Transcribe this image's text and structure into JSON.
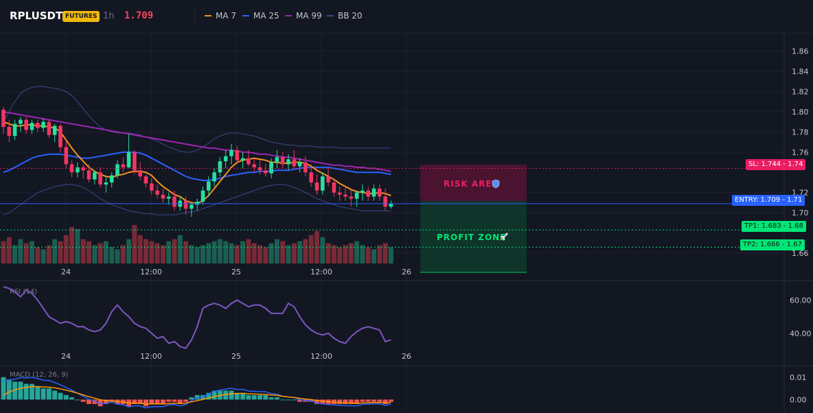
{
  "header": {
    "symbol": "RPLUSDT",
    "badge": "FUTURES",
    "timeframe": "1h",
    "price": "1.709",
    "indicators": [
      {
        "label": "MA 7",
        "color": "#f7931a"
      },
      {
        "label": "MA 25",
        "color": "#2962ff"
      },
      {
        "label": "MA 99",
        "color": "#9c27b0"
      },
      {
        "label": "BB 20",
        "color": "#3b4a8a"
      }
    ]
  },
  "price_axis": {
    "ticks": [
      "1.86",
      "1.84",
      "1.82",
      "1.80",
      "1.78",
      "1.76",
      "1.72",
      "1.70",
      "1.66"
    ],
    "tick_values": [
      1.86,
      1.84,
      1.82,
      1.8,
      1.78,
      1.76,
      1.72,
      1.7,
      1.66
    ],
    "range": [
      1.658,
      1.878
    ]
  },
  "time_axis": {
    "labels": [
      "24",
      "12:00",
      "25",
      "12:00",
      "26"
    ]
  },
  "zones": {
    "risk_label": "RISK AREA",
    "risk_icon": "shield-icon",
    "profit_label": "PROFIT ZONE",
    "profit_icon": "rocket-icon"
  },
  "levels": {
    "sl": {
      "text": "SL: 1.744",
      "axis": "1.74",
      "value": 1.744,
      "color": "#e91e63"
    },
    "entry": {
      "text": "ENTRY: 1.709",
      "axis": "1.71",
      "value": 1.709,
      "color": "#2962ff"
    },
    "tp1": {
      "text": "TP1: 1.683",
      "axis": "1.68",
      "value": 1.683,
      "color": "#00e676"
    },
    "tp2": {
      "text": "TP2: 1.666",
      "axis": "1.67",
      "value": 1.666,
      "color": "#00e676"
    }
  },
  "rsi": {
    "label": "RSI (14)",
    "ticks": [
      "60.00",
      "40.00"
    ],
    "range": [
      30,
      68
    ],
    "values": [
      68,
      67,
      65,
      62,
      66,
      64,
      60,
      55,
      50,
      48,
      46,
      47,
      46,
      44,
      44,
      42,
      41,
      42,
      46,
      53,
      57,
      53,
      50,
      46,
      44,
      43,
      40,
      37,
      38,
      34,
      35,
      32,
      31,
      36,
      44,
      55,
      57,
      58,
      57,
      55,
      58,
      60,
      58,
      56,
      57,
      57,
      55,
      52,
      52,
      52,
      58,
      56,
      50,
      45,
      42,
      40,
      39,
      40,
      37,
      35,
      34,
      38,
      41,
      43,
      44,
      43,
      42,
      35,
      36
    ]
  },
  "macd": {
    "label": "MACD (12, 26, 9)",
    "ticks": [
      "0.01",
      "0.00"
    ],
    "range": [
      -0.006,
      0.013
    ],
    "histogram": [
      0.01,
      0.009,
      0.008,
      0.008,
      0.007,
      0.007,
      0.006,
      0.005,
      0.005,
      0.004,
      0.003,
      0.002,
      0.001,
      0.0,
      -0.001,
      -0.002,
      -0.002,
      -0.003,
      -0.002,
      -0.001,
      -0.002,
      -0.002,
      -0.003,
      -0.002,
      -0.002,
      -0.003,
      -0.002,
      -0.002,
      -0.002,
      -0.001,
      -0.001,
      -0.002,
      -0.001,
      0.001,
      0.002,
      0.002,
      0.003,
      0.004,
      0.004,
      0.004,
      0.004,
      0.003,
      0.003,
      0.002,
      0.002,
      0.002,
      0.002,
      0.001,
      0.001,
      0.0,
      0.0,
      0.0,
      -0.001,
      -0.001,
      -0.001,
      -0.002,
      -0.002,
      -0.002,
      -0.002,
      -0.002,
      -0.002,
      -0.002,
      -0.002,
      -0.001,
      -0.001,
      -0.001,
      -0.001,
      -0.002,
      -0.001
    ]
  },
  "chart_data": {
    "type": "candlestick",
    "candles": [
      [
        1.802,
        1.805,
        1.778,
        1.785
      ],
      [
        1.785,
        1.792,
        1.77,
        1.776
      ],
      [
        1.776,
        1.792,
        1.772,
        1.788
      ],
      [
        1.788,
        1.795,
        1.78,
        1.792
      ],
      [
        1.792,
        1.795,
        1.778,
        1.782
      ],
      [
        1.782,
        1.792,
        1.778,
        1.789
      ],
      [
        1.789,
        1.792,
        1.78,
        1.784
      ],
      [
        1.784,
        1.794,
        1.78,
        1.79
      ],
      [
        1.79,
        1.792,
        1.774,
        1.777
      ],
      [
        1.777,
        1.788,
        1.77,
        1.786
      ],
      [
        1.786,
        1.788,
        1.76,
        1.765
      ],
      [
        1.765,
        1.772,
        1.744,
        1.748
      ],
      [
        1.748,
        1.752,
        1.735,
        1.74
      ],
      [
        1.74,
        1.75,
        1.735,
        1.745
      ],
      [
        1.745,
        1.748,
        1.734,
        1.742
      ],
      [
        1.742,
        1.748,
        1.73,
        1.733
      ],
      [
        1.733,
        1.742,
        1.728,
        1.74
      ],
      [
        1.74,
        1.745,
        1.725,
        1.728
      ],
      [
        1.728,
        1.735,
        1.72,
        1.73
      ],
      [
        1.73,
        1.74,
        1.725,
        1.737
      ],
      [
        1.737,
        1.752,
        1.734,
        1.748
      ],
      [
        1.748,
        1.755,
        1.74,
        1.745
      ],
      [
        1.745,
        1.778,
        1.744,
        1.76
      ],
      [
        1.76,
        1.762,
        1.738,
        1.742
      ],
      [
        1.742,
        1.75,
        1.732,
        1.736
      ],
      [
        1.736,
        1.738,
        1.725,
        1.729
      ],
      [
        1.729,
        1.734,
        1.718,
        1.722
      ],
      [
        1.722,
        1.728,
        1.714,
        1.718
      ],
      [
        1.718,
        1.724,
        1.71,
        1.714
      ],
      [
        1.714,
        1.72,
        1.708,
        1.716
      ],
      [
        1.716,
        1.722,
        1.702,
        1.706
      ],
      [
        1.706,
        1.716,
        1.702,
        1.712
      ],
      [
        1.712,
        1.716,
        1.698,
        1.704
      ],
      [
        1.704,
        1.71,
        1.696,
        1.708
      ],
      [
        1.708,
        1.714,
        1.702,
        1.711
      ],
      [
        1.711,
        1.726,
        1.708,
        1.722
      ],
      [
        1.722,
        1.736,
        1.716,
        1.731
      ],
      [
        1.731,
        1.744,
        1.726,
        1.74
      ],
      [
        1.74,
        1.755,
        1.736,
        1.751
      ],
      [
        1.751,
        1.762,
        1.744,
        1.756
      ],
      [
        1.756,
        1.768,
        1.748,
        1.762
      ],
      [
        1.762,
        1.766,
        1.748,
        1.752
      ],
      [
        1.752,
        1.76,
        1.744,
        1.754
      ],
      [
        1.754,
        1.762,
        1.746,
        1.748
      ],
      [
        1.748,
        1.754,
        1.74,
        1.745
      ],
      [
        1.745,
        1.752,
        1.738,
        1.742
      ],
      [
        1.742,
        1.748,
        1.736,
        1.739
      ],
      [
        1.739,
        1.754,
        1.734,
        1.75
      ],
      [
        1.75,
        1.762,
        1.744,
        1.755
      ],
      [
        1.755,
        1.76,
        1.744,
        1.748
      ],
      [
        1.748,
        1.758,
        1.742,
        1.753
      ],
      [
        1.753,
        1.762,
        1.744,
        1.746
      ],
      [
        1.746,
        1.754,
        1.74,
        1.75
      ],
      [
        1.75,
        1.756,
        1.736,
        1.74
      ],
      [
        1.74,
        1.748,
        1.726,
        1.73
      ],
      [
        1.73,
        1.738,
        1.718,
        1.722
      ],
      [
        1.722,
        1.74,
        1.718,
        1.736
      ],
      [
        1.736,
        1.744,
        1.726,
        1.73
      ],
      [
        1.73,
        1.734,
        1.716,
        1.72
      ],
      [
        1.72,
        1.726,
        1.712,
        1.718
      ],
      [
        1.718,
        1.726,
        1.712,
        1.716
      ],
      [
        1.716,
        1.722,
        1.706,
        1.714
      ],
      [
        1.714,
        1.722,
        1.706,
        1.72
      ],
      [
        1.72,
        1.728,
        1.712,
        1.722
      ],
      [
        1.722,
        1.726,
        1.712,
        1.716
      ],
      [
        1.716,
        1.728,
        1.712,
        1.724
      ],
      [
        1.724,
        1.728,
        1.712,
        1.716
      ],
      [
        1.716,
        1.724,
        1.702,
        1.706
      ],
      [
        1.706,
        1.712,
        1.704,
        1.709
      ]
    ],
    "ma7": [
      1.79,
      1.788,
      1.786,
      1.786,
      1.787,
      1.787,
      1.786,
      1.786,
      1.785,
      1.784,
      1.78,
      1.772,
      1.764,
      1.757,
      1.751,
      1.745,
      1.741,
      1.738,
      1.736,
      1.735,
      1.737,
      1.738,
      1.74,
      1.741,
      1.741,
      1.74,
      1.737,
      1.731,
      1.726,
      1.722,
      1.718,
      1.716,
      1.712,
      1.71,
      1.709,
      1.712,
      1.717,
      1.724,
      1.731,
      1.738,
      1.745,
      1.75,
      1.752,
      1.753,
      1.754,
      1.753,
      1.752,
      1.75,
      1.75,
      1.749,
      1.749,
      1.75,
      1.75,
      1.749,
      1.746,
      1.742,
      1.739,
      1.736,
      1.733,
      1.729,
      1.726,
      1.723,
      1.721,
      1.72,
      1.719,
      1.719,
      1.72,
      1.719,
      1.717
    ],
    "ma25": [
      1.74,
      1.742,
      1.745,
      1.748,
      1.751,
      1.754,
      1.756,
      1.757,
      1.758,
      1.758,
      1.758,
      1.757,
      1.756,
      1.755,
      1.754,
      1.754,
      1.755,
      1.756,
      1.757,
      1.758,
      1.759,
      1.76,
      1.76,
      1.76,
      1.759,
      1.757,
      1.754,
      1.751,
      1.748,
      1.745,
      1.742,
      1.739,
      1.736,
      1.734,
      1.733,
      1.732,
      1.732,
      1.733,
      1.734,
      1.736,
      1.737,
      1.738,
      1.739,
      1.74,
      1.74,
      1.741,
      1.741,
      1.741,
      1.742,
      1.742,
      1.742,
      1.743,
      1.744,
      1.745,
      1.745,
      1.745,
      1.745,
      1.745,
      1.744,
      1.743,
      1.742,
      1.741,
      1.74,
      1.74,
      1.74,
      1.74,
      1.74,
      1.739,
      1.738
    ],
    "ma99": [
      1.8,
      1.799,
      1.798,
      1.797,
      1.796,
      1.795,
      1.794,
      1.793,
      1.792,
      1.791,
      1.79,
      1.789,
      1.788,
      1.787,
      1.786,
      1.785,
      1.784,
      1.783,
      1.782,
      1.781,
      1.78,
      1.779,
      1.778,
      1.777,
      1.776,
      1.775,
      1.774,
      1.773,
      1.772,
      1.771,
      1.77,
      1.769,
      1.768,
      1.767,
      1.766,
      1.765,
      1.764,
      1.764,
      1.763,
      1.762,
      1.762,
      1.761,
      1.76,
      1.76,
      1.759,
      1.758,
      1.758,
      1.757,
      1.756,
      1.755,
      1.755,
      1.754,
      1.753,
      1.752,
      1.751,
      1.75,
      1.749,
      1.748,
      1.747,
      1.747,
      1.746,
      1.746,
      1.745,
      1.745,
      1.744,
      1.744,
      1.743,
      1.742,
      1.741
    ],
    "bb_upper": [
      1.79,
      1.8,
      1.81,
      1.818,
      1.822,
      1.824,
      1.825,
      1.825,
      1.824,
      1.823,
      1.822,
      1.82,
      1.816,
      1.81,
      1.803,
      1.796,
      1.79,
      1.785,
      1.782,
      1.78,
      1.779,
      1.779,
      1.779,
      1.778,
      1.777,
      1.775,
      1.773,
      1.771,
      1.768,
      1.765,
      1.763,
      1.761,
      1.76,
      1.76,
      1.762,
      1.765,
      1.769,
      1.773,
      1.776,
      1.778,
      1.779,
      1.779,
      1.778,
      1.777,
      1.776,
      1.774,
      1.772,
      1.77,
      1.769,
      1.768,
      1.767,
      1.767,
      1.766,
      1.766,
      1.766,
      1.765,
      1.765,
      1.765,
      1.765,
      1.764,
      1.764,
      1.764,
      1.764,
      1.764,
      1.764,
      1.764,
      1.764,
      1.764,
      1.764
    ],
    "bb_lower": [
      1.698,
      1.7,
      1.704,
      1.708,
      1.712,
      1.716,
      1.72,
      1.722,
      1.724,
      1.726,
      1.727,
      1.728,
      1.728,
      1.727,
      1.725,
      1.722,
      1.718,
      1.714,
      1.711,
      1.708,
      1.706,
      1.704,
      1.702,
      1.701,
      1.7,
      1.699,
      1.699,
      1.698,
      1.698,
      1.698,
      1.698,
      1.699,
      1.7,
      1.701,
      1.702,
      1.704,
      1.706,
      1.708,
      1.71,
      1.712,
      1.714,
      1.716,
      1.718,
      1.72,
      1.722,
      1.724,
      1.726,
      1.727,
      1.728,
      1.728,
      1.727,
      1.725,
      1.723,
      1.72,
      1.717,
      1.714,
      1.712,
      1.71,
      1.708,
      1.706,
      1.705,
      1.704,
      1.703,
      1.702,
      1.702,
      1.702,
      1.702,
      1.702,
      1.702
    ],
    "volume": [
      55,
      65,
      45,
      60,
      50,
      55,
      40,
      35,
      45,
      60,
      55,
      70,
      90,
      85,
      60,
      55,
      45,
      50,
      55,
      40,
      35,
      45,
      60,
      95,
      70,
      60,
      55,
      50,
      45,
      55,
      60,
      70,
      55,
      45,
      40,
      45,
      50,
      55,
      60,
      55,
      50,
      45,
      55,
      60,
      50,
      45,
      40,
      50,
      60,
      55,
      45,
      50,
      55,
      60,
      70,
      80,
      65,
      50,
      45,
      40,
      45,
      50,
      55,
      45,
      40,
      35,
      45,
      50,
      40
    ]
  }
}
